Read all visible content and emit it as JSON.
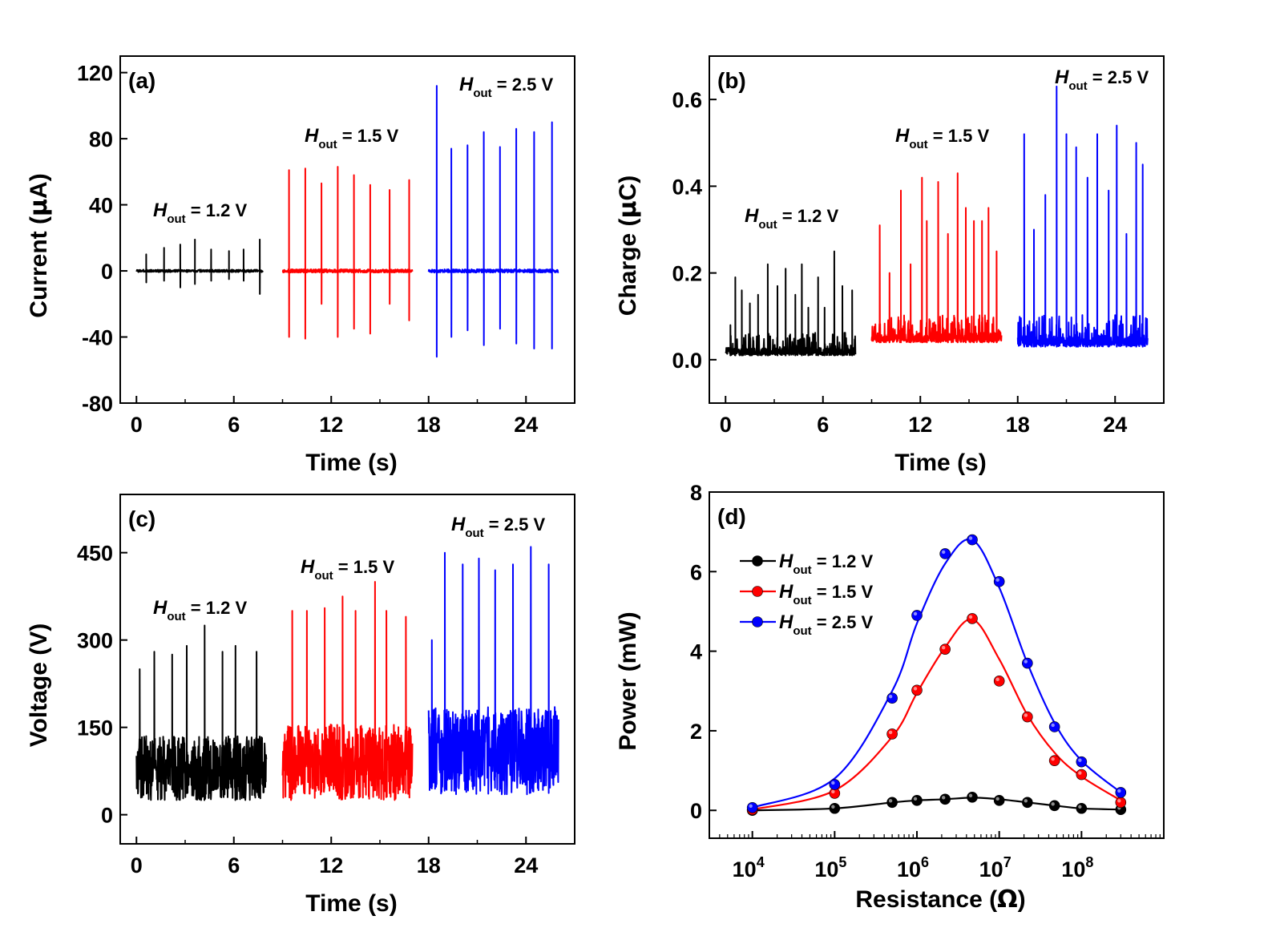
{
  "figure_colors": {
    "black": "#000000",
    "red": "#ff0000",
    "blue": "#0000ff"
  },
  "chart_data": [
    {
      "panel_label": "(a)",
      "type": "line",
      "xlabel": "Time (s)",
      "ylabel_parts": {
        "pre": "Current (",
        "unit_symbol": "μ",
        "post": "A)"
      },
      "xlim": [
        -1,
        27
      ],
      "ylim": [
        -80,
        130
      ],
      "xticks": [
        0,
        6,
        12,
        18,
        24
      ],
      "yticks": [
        -80,
        -40,
        0,
        40,
        80,
        120
      ],
      "series": [
        {
          "name": "H_out = 1.2 V",
          "label": {
            "sym": "H",
            "sub": "out",
            "rest": "= 1.2 V"
          },
          "color": "#000000",
          "t_range": [
            0,
            7.8
          ],
          "baseline": 0,
          "noise": 1.5,
          "spike_times": [
            0.6,
            1.7,
            2.7,
            3.6,
            4.6,
            5.7,
            6.6,
            7.6
          ],
          "spike_max": [
            10,
            14,
            16,
            19,
            13,
            12,
            13,
            19
          ],
          "spike_min": [
            -7,
            -6,
            -10,
            -8,
            -6,
            -5,
            -6,
            -14
          ]
        },
        {
          "name": "H_out = 1.5 V",
          "label": {
            "sym": "H",
            "sub": "out",
            "rest": "= 1.5 V"
          },
          "color": "#ff0000",
          "t_range": [
            9,
            17
          ],
          "baseline": 0,
          "noise": 2,
          "spike_times": [
            9.4,
            10.4,
            11.4,
            12.4,
            13.4,
            14.4,
            15.6,
            16.8
          ],
          "spike_max": [
            61,
            62,
            53,
            63,
            58,
            52,
            49,
            55
          ],
          "spike_min": [
            -40,
            -41,
            -20,
            -40,
            -35,
            -38,
            -20,
            -30
          ]
        },
        {
          "name": "H_out = 2.5 V",
          "label": {
            "sym": "H",
            "sub": "out",
            "rest": "= 2.5 V"
          },
          "color": "#0000ff",
          "t_range": [
            18,
            26
          ],
          "baseline": 0,
          "noise": 2,
          "spike_times": [
            18.5,
            19.4,
            20.4,
            21.4,
            22.4,
            23.4,
            24.5,
            25.6
          ],
          "spike_max": [
            112,
            74,
            76,
            84,
            75,
            86,
            84,
            90
          ],
          "spike_min": [
            -52,
            -40,
            -36,
            -45,
            -35,
            -44,
            -47,
            -47
          ]
        }
      ]
    },
    {
      "panel_label": "(b)",
      "type": "line",
      "xlabel": "Time (s)",
      "ylabel_parts": {
        "pre": "Charge (",
        "unit_symbol": "μ",
        "post": "C)"
      },
      "xlim": [
        -1,
        27
      ],
      "ylim": [
        -0.1,
        0.7
      ],
      "xticks": [
        0,
        6,
        12,
        18,
        24
      ],
      "yticks": [
        0.0,
        0.2,
        0.4,
        0.6
      ],
      "tick_decimals": 1,
      "series": [
        {
          "name": "H_out = 1.2 V",
          "label": {
            "sym": "H",
            "sub": "out",
            "rest": "= 1.2 V"
          },
          "color": "#000000",
          "t_range": [
            0,
            8
          ],
          "baseline": 0.01,
          "noise": 0.025,
          "spike_times": [
            0.3,
            0.6,
            1.0,
            1.5,
            2.0,
            2.6,
            3.2,
            3.7,
            4.3,
            4.7,
            5.1,
            5.7,
            6.1,
            6.7,
            7.2,
            7.8
          ],
          "spike_max": [
            0.08,
            0.19,
            0.16,
            0.13,
            0.15,
            0.22,
            0.17,
            0.21,
            0.15,
            0.22,
            0.12,
            0.19,
            0.12,
            0.25,
            0.17,
            0.16
          ]
        },
        {
          "name": "H_out = 1.5 V",
          "label": {
            "sym": "H",
            "sub": "out",
            "rest": "= 1.5 V"
          },
          "color": "#ff0000",
          "t_range": [
            9,
            17
          ],
          "baseline": 0.04,
          "noise": 0.03,
          "spike_times": [
            9.5,
            10.1,
            10.8,
            11.4,
            12.1,
            12.4,
            13.1,
            13.7,
            14.3,
            14.8,
            15.3,
            15.8,
            16.2,
            16.7
          ],
          "spike_max": [
            0.31,
            0.2,
            0.39,
            0.22,
            0.42,
            0.32,
            0.41,
            0.29,
            0.43,
            0.35,
            0.32,
            0.32,
            0.35,
            0.25
          ]
        },
        {
          "name": "H_out = 2.5 V",
          "label": {
            "sym": "H",
            "sub": "out",
            "rest": "= 2.5 V"
          },
          "color": "#0000ff",
          "t_range": [
            18,
            26
          ],
          "baseline": 0.03,
          "noise": 0.035,
          "spike_times": [
            18.4,
            19.0,
            19.7,
            20.4,
            21.0,
            21.6,
            22.3,
            22.9,
            23.6,
            24.1,
            24.7,
            25.3,
            25.7
          ],
          "spike_max": [
            0.52,
            0.3,
            0.38,
            0.63,
            0.52,
            0.49,
            0.42,
            0.52,
            0.39,
            0.54,
            0.29,
            0.5,
            0.45
          ]
        }
      ]
    },
    {
      "panel_label": "(c)",
      "type": "line",
      "xlabel": "Time (s)",
      "ylabel_parts": {
        "pre": "Voltage (V)",
        "unit_symbol": "",
        "post": ""
      },
      "xlim": [
        -1,
        27
      ],
      "ylim": [
        -50,
        550
      ],
      "xticks": [
        0,
        6,
        12,
        18,
        24
      ],
      "yticks": [
        0,
        150,
        300,
        450
      ],
      "series": [
        {
          "name": "H_out = 1.2 V",
          "label": {
            "sym": "H",
            "sub": "out",
            "rest": "= 1.2 V"
          },
          "color": "#000000",
          "t_range": [
            0,
            8
          ],
          "baseline": 80,
          "noise": 55,
          "spike_times": [
            0.2,
            1.1,
            2.2,
            3.1,
            4.2,
            5.3,
            6.1,
            7.4
          ],
          "spike_max": [
            250,
            280,
            275,
            290,
            325,
            280,
            290,
            280
          ]
        },
        {
          "name": "H_out = 1.5 V",
          "label": {
            "sym": "H",
            "sub": "out",
            "rest": "= 1.5 V"
          },
          "color": "#ff0000",
          "t_range": [
            9,
            17
          ],
          "baseline": 90,
          "noise": 65,
          "spike_times": [
            9.6,
            10.5,
            11.6,
            12.7,
            13.5,
            14.7,
            15.4,
            16.6
          ],
          "spike_max": [
            350,
            350,
            355,
            375,
            350,
            400,
            350,
            340
          ]
        },
        {
          "name": "H_out = 2.5 V",
          "label": {
            "sym": "H",
            "sub": "out",
            "rest": "= 2.5 V"
          },
          "color": "#0000ff",
          "t_range": [
            18,
            26
          ],
          "baseline": 110,
          "noise": 75,
          "spike_times": [
            18.2,
            19.0,
            20.1,
            21.1,
            22.1,
            23.2,
            24.3,
            25.4
          ],
          "spike_max": [
            300,
            450,
            430,
            440,
            420,
            430,
            460,
            430
          ]
        }
      ]
    },
    {
      "panel_label": "(d)",
      "type": "line",
      "xlabel_parts": {
        "pre": "Resistance (",
        "unit_symbol": "Ω",
        "post": ")"
      },
      "ylabel": "Power (mW)",
      "x_scale": "log",
      "xlim": [
        3000,
        1000000000
      ],
      "ylim": [
        -0.7,
        8
      ],
      "xtick_labels": [
        {
          "base": "10",
          "exp": "4"
        },
        {
          "base": "10",
          "exp": "5"
        },
        {
          "base": "10",
          "exp": "6"
        },
        {
          "base": "10",
          "exp": "7"
        },
        {
          "base": "10",
          "exp": "8"
        }
      ],
      "xtick_values": [
        10000,
        100000,
        1000000,
        10000000,
        100000000
      ],
      "yticks": [
        0,
        2,
        4,
        6,
        8
      ],
      "legend_position": "upper-left",
      "series": [
        {
          "name": "H_out = 1.2 V",
          "label": {
            "sym": "H",
            "sub": "out",
            "rest": "= 1.2 V"
          },
          "color": "#000000",
          "x": [
            10000,
            100000,
            500000,
            1000000,
            2200000,
            4700000,
            10000000,
            22000000,
            47000000,
            100000000,
            300000000
          ],
          "y": [
            0.0,
            0.05,
            0.2,
            0.25,
            0.28,
            0.33,
            0.25,
            0.2,
            0.12,
            0.05,
            0.02
          ],
          "fit": [
            0.0,
            0.05,
            0.2,
            0.25,
            0.28,
            0.32,
            0.28,
            0.2,
            0.12,
            0.05,
            0.02
          ]
        },
        {
          "name": "H_out = 1.5 V",
          "label": {
            "sym": "H",
            "sub": "out",
            "rest": "= 1.5 V"
          },
          "color": "#ff0000",
          "x": [
            10000,
            100000,
            500000,
            1000000,
            2200000,
            4700000,
            10000000,
            22000000,
            47000000,
            100000000,
            300000000
          ],
          "y": [
            0.02,
            0.43,
            1.92,
            3.02,
            4.05,
            4.82,
            3.25,
            2.35,
            1.25,
            0.9,
            0.2
          ],
          "fit": [
            0.02,
            0.5,
            1.85,
            2.95,
            4.1,
            4.8,
            3.8,
            2.4,
            1.45,
            0.85,
            0.25
          ]
        },
        {
          "name": "H_out = 2.5 V",
          "label": {
            "sym": "H",
            "sub": "out",
            "rest": "= 2.5 V"
          },
          "color": "#0000ff",
          "x": [
            10000,
            100000,
            500000,
            1000000,
            2200000,
            4700000,
            10000000,
            22000000,
            47000000,
            100000000,
            300000000
          ],
          "y": [
            0.07,
            0.65,
            2.82,
            4.9,
            6.45,
            6.8,
            5.75,
            3.7,
            2.1,
            1.22,
            0.45
          ],
          "fit": [
            0.07,
            0.8,
            3.0,
            4.7,
            6.2,
            6.8,
            5.6,
            3.7,
            2.2,
            1.25,
            0.45
          ]
        }
      ]
    }
  ]
}
